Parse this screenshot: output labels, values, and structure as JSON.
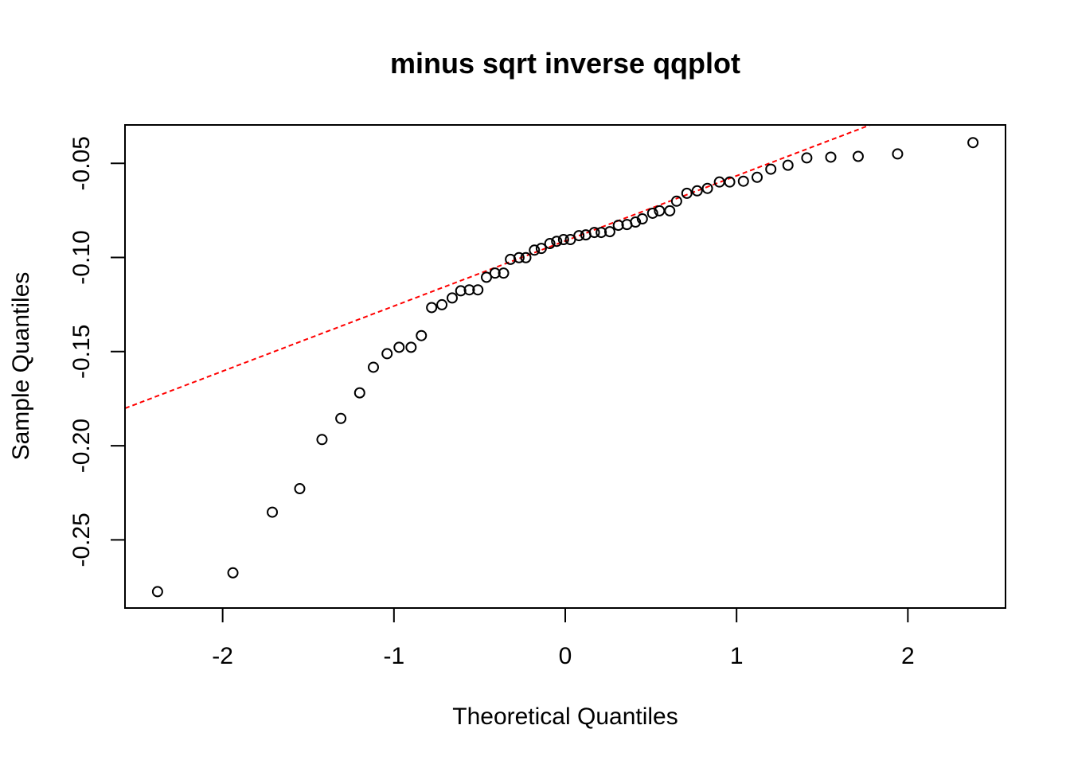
{
  "chart_data": {
    "type": "scatter",
    "title": "minus sqrt inverse qqplot",
    "xlabel": "Theoretical Quantiles",
    "ylabel": "Sample Quantiles",
    "xlim": [
      -2.57,
      2.57
    ],
    "ylim": [
      -0.2862,
      -0.0296
    ],
    "x_ticks": [
      -2,
      -1,
      0,
      1,
      2
    ],
    "x_tick_labels": [
      "-2",
      "-1",
      "0",
      "1",
      "2"
    ],
    "y_ticks": [
      -0.25,
      -0.2,
      -0.15,
      -0.1,
      -0.05
    ],
    "y_tick_labels": [
      "-0.25",
      "-0.20",
      "-0.15",
      "-0.10",
      "-0.05"
    ],
    "grid": false,
    "colors": {
      "points": "#000000",
      "reference_line": "#ff0000"
    },
    "reference_line": {
      "style": "dashed",
      "slope": 0.0346,
      "intercept": -0.0912
    },
    "points": [
      {
        "x": -2.38,
        "y": -0.2775
      },
      {
        "x": -1.94,
        "y": -0.2675
      },
      {
        "x": -1.71,
        "y": -0.2353
      },
      {
        "x": -1.55,
        "y": -0.2228
      },
      {
        "x": -1.42,
        "y": -0.1967
      },
      {
        "x": -1.31,
        "y": -0.1855
      },
      {
        "x": -1.2,
        "y": -0.1719
      },
      {
        "x": -1.12,
        "y": -0.1583
      },
      {
        "x": -1.04,
        "y": -0.1511
      },
      {
        "x": -0.97,
        "y": -0.1477
      },
      {
        "x": -0.9,
        "y": -0.1477
      },
      {
        "x": -0.84,
        "y": -0.1415
      },
      {
        "x": -0.78,
        "y": -0.1266
      },
      {
        "x": -0.72,
        "y": -0.1251
      },
      {
        "x": -0.66,
        "y": -0.1215
      },
      {
        "x": -0.61,
        "y": -0.1177
      },
      {
        "x": -0.56,
        "y": -0.1172
      },
      {
        "x": -0.51,
        "y": -0.1172
      },
      {
        "x": -0.46,
        "y": -0.1105
      },
      {
        "x": -0.41,
        "y": -0.1083
      },
      {
        "x": -0.36,
        "y": -0.1083
      },
      {
        "x": -0.32,
        "y": -0.101
      },
      {
        "x": -0.27,
        "y": -0.1001
      },
      {
        "x": -0.23,
        "y": -0.1001
      },
      {
        "x": -0.18,
        "y": -0.0961
      },
      {
        "x": -0.14,
        "y": -0.0952
      },
      {
        "x": -0.09,
        "y": -0.0926
      },
      {
        "x": -0.05,
        "y": -0.0914
      },
      {
        "x": -0.01,
        "y": -0.0905
      },
      {
        "x": 0.03,
        "y": -0.0905
      },
      {
        "x": 0.08,
        "y": -0.0884
      },
      {
        "x": 0.12,
        "y": -0.088
      },
      {
        "x": 0.17,
        "y": -0.0867
      },
      {
        "x": 0.21,
        "y": -0.0867
      },
      {
        "x": 0.26,
        "y": -0.0863
      },
      {
        "x": 0.31,
        "y": -0.0829
      },
      {
        "x": 0.36,
        "y": -0.0825
      },
      {
        "x": 0.41,
        "y": -0.0812
      },
      {
        "x": 0.45,
        "y": -0.0795
      },
      {
        "x": 0.51,
        "y": -0.0765
      },
      {
        "x": 0.55,
        "y": -0.0752
      },
      {
        "x": 0.61,
        "y": -0.0752
      },
      {
        "x": 0.65,
        "y": -0.0701
      },
      {
        "x": 0.71,
        "y": -0.0659
      },
      {
        "x": 0.77,
        "y": -0.0646
      },
      {
        "x": 0.83,
        "y": -0.0633
      },
      {
        "x": 0.9,
        "y": -0.0599
      },
      {
        "x": 0.96,
        "y": -0.0599
      },
      {
        "x": 1.04,
        "y": -0.0595
      },
      {
        "x": 1.12,
        "y": -0.0574
      },
      {
        "x": 1.2,
        "y": -0.0531
      },
      {
        "x": 1.3,
        "y": -0.051
      },
      {
        "x": 1.41,
        "y": -0.0471
      },
      {
        "x": 1.55,
        "y": -0.0467
      },
      {
        "x": 1.71,
        "y": -0.0463
      },
      {
        "x": 1.94,
        "y": -0.045
      },
      {
        "x": 2.38,
        "y": -0.039
      }
    ]
  }
}
